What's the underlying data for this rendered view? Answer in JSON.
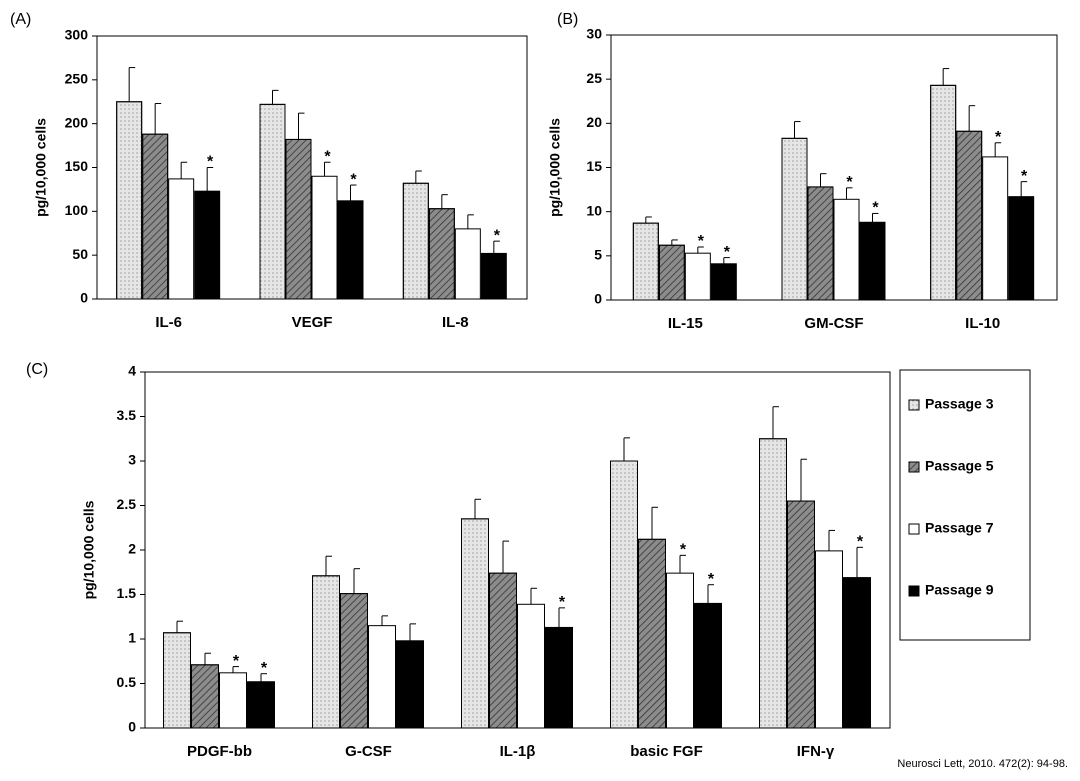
{
  "chart_data": [
    {
      "type": "bar",
      "panel": "(A)",
      "ylabel": "pg/10,000 cells",
      "categories": [
        "IL-6",
        "VEGF",
        "IL-8"
      ],
      "ylim": [
        0,
        300
      ],
      "yticks": [
        0,
        50,
        100,
        150,
        200,
        250,
        300
      ],
      "series": [
        {
          "color": "#e6e6e6",
          "values": [
            225,
            222,
            132
          ],
          "errors": [
            39,
            16,
            14
          ],
          "significance": [
            null,
            null,
            null
          ]
        },
        {
          "color": "#8c8c8c",
          "values": [
            188,
            182,
            103
          ],
          "errors": [
            35,
            30,
            16
          ],
          "significance": [
            null,
            null,
            null
          ]
        },
        {
          "color": "#ffffff",
          "values": [
            137,
            140,
            80
          ],
          "errors": [
            19,
            16,
            16
          ],
          "significance": [
            null,
            "*",
            null
          ]
        },
        {
          "color": "#000000",
          "values": [
            123,
            112,
            52
          ],
          "errors": [
            27,
            18,
            14
          ],
          "significance": [
            "*",
            "*",
            "*"
          ]
        }
      ]
    },
    {
      "type": "bar",
      "panel": "(B)",
      "ylabel": "pg/10,000 cells",
      "categories": [
        "IL-15",
        "GM-CSF",
        "IL-10"
      ],
      "ylim": [
        0,
        30
      ],
      "yticks": [
        0,
        5,
        10,
        15,
        20,
        25,
        30
      ],
      "series": [
        {
          "color": "#e6e6e6",
          "values": [
            8.7,
            18.3,
            24.3
          ],
          "errors": [
            0.7,
            1.9,
            1.9
          ],
          "significance": [
            null,
            null,
            null
          ]
        },
        {
          "color": "#8c8c8c",
          "values": [
            6.2,
            12.8,
            19.1
          ],
          "errors": [
            0.6,
            1.5,
            2.9
          ],
          "significance": [
            null,
            null,
            null
          ]
        },
        {
          "color": "#ffffff",
          "values": [
            5.3,
            11.4,
            16.2
          ],
          "errors": [
            0.7,
            1.3,
            1.6
          ],
          "significance": [
            "*",
            "*",
            "*"
          ]
        },
        {
          "color": "#000000",
          "values": [
            4.1,
            8.8,
            11.7
          ],
          "errors": [
            0.7,
            1.0,
            1.7
          ],
          "significance": [
            "*",
            "*",
            "*"
          ]
        }
      ]
    },
    {
      "type": "bar",
      "panel": "(C)",
      "ylabel": "pg/10,000 cells",
      "legend": "right",
      "categories": [
        "PDGF-bb",
        "G-CSF",
        "IL-1β",
        "basic FGF",
        "IFN-γ"
      ],
      "ylim": [
        0,
        4
      ],
      "yticks": [
        0,
        0.5,
        1,
        1.5,
        2,
        2.5,
        3,
        3.5,
        4
      ],
      "series": [
        {
          "name": "Passage 3",
          "color": "#e6e6e6",
          "values": [
            1.07,
            1.71,
            2.35,
            3.0,
            3.25
          ],
          "errors": [
            0.13,
            0.22,
            0.22,
            0.26,
            0.36
          ],
          "significance": [
            null,
            null,
            null,
            null,
            null
          ]
        },
        {
          "name": "Passage 5",
          "color": "#8c8c8c",
          "values": [
            0.71,
            1.51,
            1.74,
            2.12,
            2.55
          ],
          "errors": [
            0.13,
            0.28,
            0.36,
            0.36,
            0.47
          ],
          "significance": [
            null,
            null,
            null,
            null,
            null
          ]
        },
        {
          "name": "Passage 7",
          "color": "#ffffff",
          "values": [
            0.62,
            1.15,
            1.39,
            1.74,
            1.99
          ],
          "errors": [
            0.07,
            0.11,
            0.18,
            0.2,
            0.23
          ],
          "significance": [
            "*",
            null,
            null,
            "*",
            null
          ]
        },
        {
          "name": "Passage 9",
          "color": "#000000",
          "values": [
            0.52,
            0.98,
            1.13,
            1.4,
            1.69
          ],
          "errors": [
            0.09,
            0.19,
            0.22,
            0.21,
            0.34
          ],
          "significance": [
            "*",
            null,
            "*",
            "*",
            "*"
          ]
        }
      ]
    }
  ],
  "source": "Neurosci Lett, 2010. 472(2): 94-98."
}
